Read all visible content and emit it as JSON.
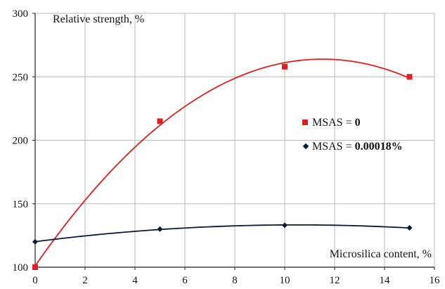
{
  "chart_data": {
    "type": "scatter",
    "title": "",
    "xlabel": "Microsilica content, %",
    "ylabel": "Relative strength, %",
    "xlim": [
      0,
      16
    ],
    "ylim": [
      100,
      300
    ],
    "x_ticks": [
      "0",
      "2",
      "4",
      "6",
      "8",
      "10",
      "12",
      "14",
      "16"
    ],
    "y_ticks": [
      "100",
      "150",
      "200",
      "250",
      "300"
    ],
    "grid": true,
    "legend_position": "right",
    "series": [
      {
        "name": "MSAS = ",
        "name_bold": "0",
        "color": "#e02020",
        "marker": "square",
        "x": [
          0,
          5,
          10,
          15
        ],
        "y": [
          100,
          215,
          258,
          250
        ],
        "trendline": "polynomial-2"
      },
      {
        "name": "MSAS = ",
        "name_bold": "0.00018%",
        "color": "#0a1a3a",
        "marker": "diamond",
        "x": [
          0,
          5,
          10,
          15
        ],
        "y": [
          120,
          130,
          133,
          131
        ],
        "trendline": "polynomial-2"
      }
    ]
  }
}
